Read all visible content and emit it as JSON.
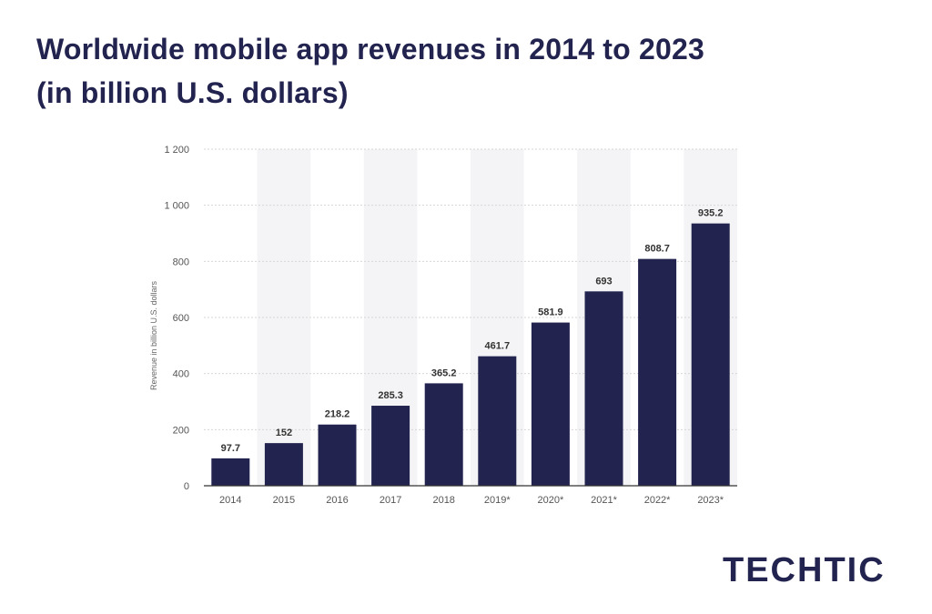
{
  "header": {
    "title_line1": "Worldwide mobile app revenues in 2014 to 2023",
    "title_line2": "(in billion U.S. dollars)"
  },
  "brand": {
    "logo_text": "TECHTIC"
  },
  "colors": {
    "bar": "#22234f",
    "title": "#22234f",
    "band": "#f4f4f6",
    "grid": "#d6d6d6",
    "axis_text": "#555555"
  },
  "chart_data": {
    "type": "bar",
    "title": "Worldwide mobile app revenues in 2014 to 2023 (in billion U.S. dollars)",
    "xlabel": "",
    "ylabel": "Revenue in billion U.S. dollars",
    "categories": [
      "2014",
      "2015",
      "2016",
      "2017",
      "2018",
      "2019*",
      "2020*",
      "2021*",
      "2022*",
      "2023*"
    ],
    "values": [
      97.7,
      152,
      218.2,
      285.3,
      365.2,
      461.7,
      581.9,
      693,
      808.7,
      935.2
    ],
    "value_labels": [
      "97.7",
      "152",
      "218.2",
      "285.3",
      "365.2",
      "461.7",
      "581.9",
      "693",
      "808.7",
      "935.2"
    ],
    "ylim": [
      0,
      1200
    ],
    "yticks": [
      0,
      200,
      400,
      600,
      800,
      1000,
      1200
    ],
    "ytick_labels": [
      "0",
      "200",
      "400",
      "600",
      "800",
      "1 000",
      "1 200"
    ],
    "grid": true,
    "legend": false
  }
}
